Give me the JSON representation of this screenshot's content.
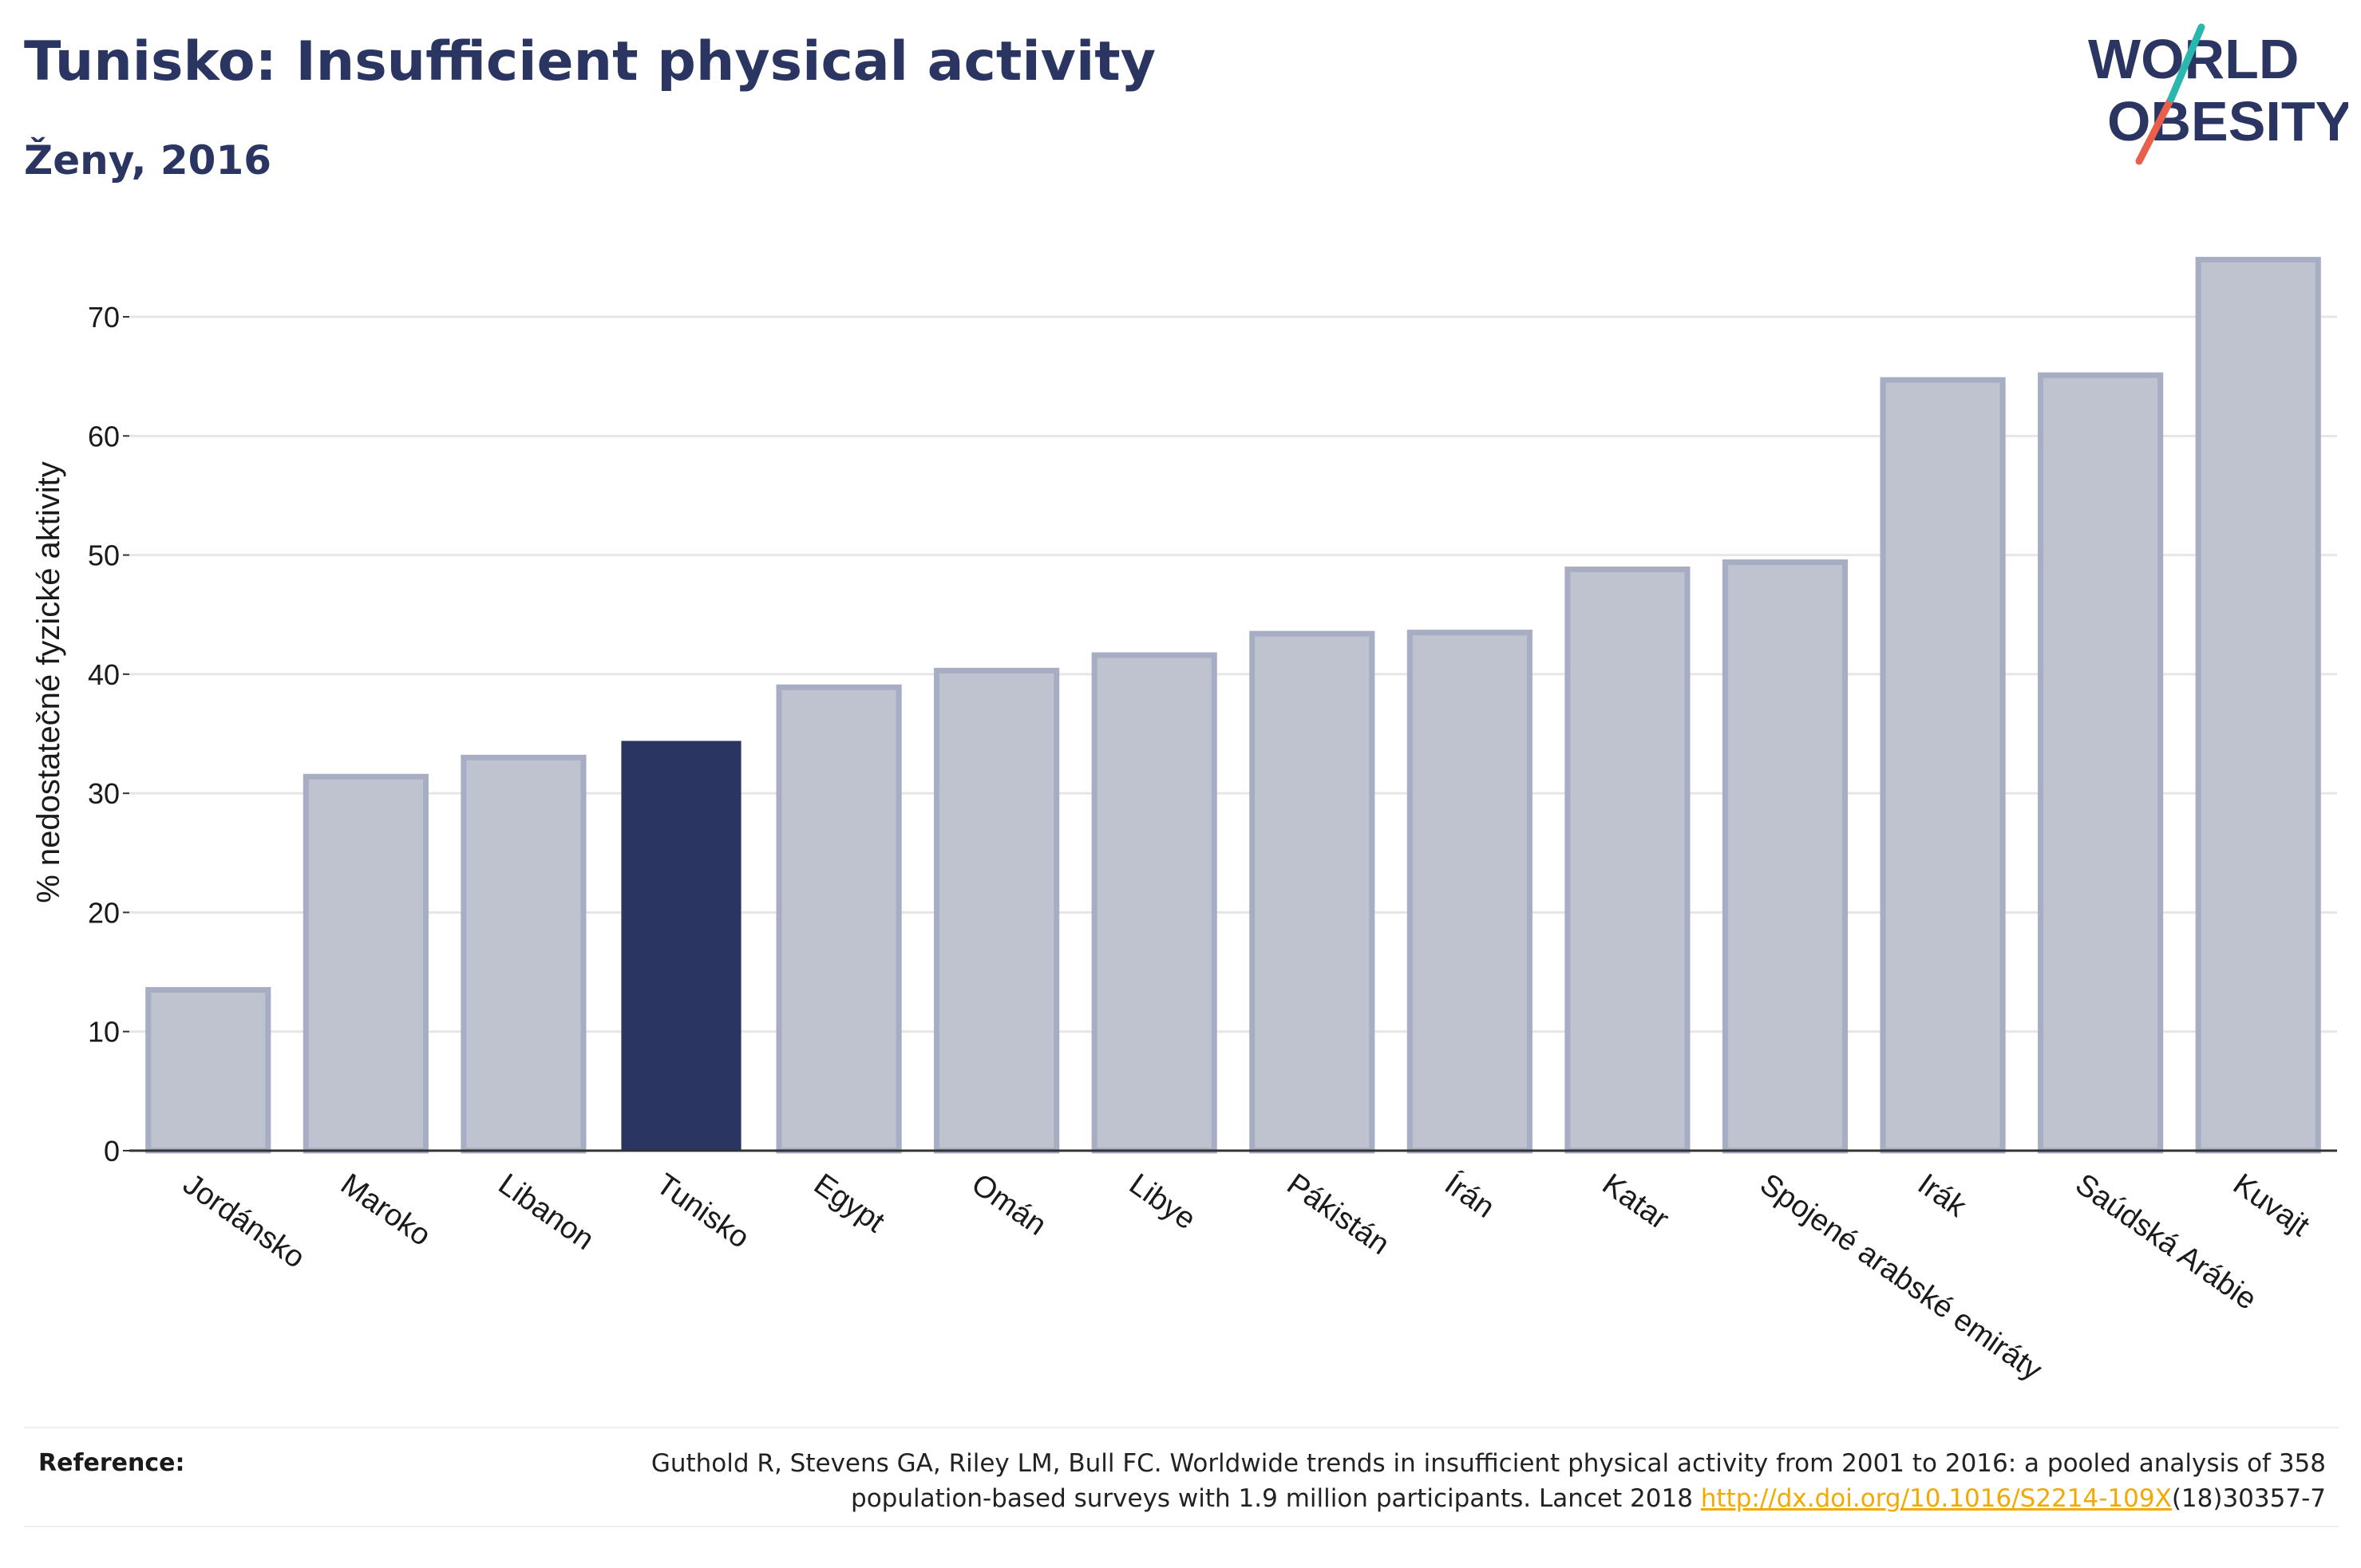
{
  "title": "Tunisko: Insufficient physical activity",
  "subtitle": "Ženy, 2016",
  "logo": {
    "line1": "WORLD",
    "line2": "OBESITY"
  },
  "colors": {
    "title": "#2b3561",
    "bar_default": "#bfc3d0",
    "bar_default_stroke": "#a7adc2",
    "bar_highlight": "#2b3561",
    "grid": "#e6e6e6",
    "axis": "#333333",
    "link": "#f2a900",
    "logo_teal": "#2ab7b0",
    "logo_coral": "#e8604c"
  },
  "chart_data": {
    "type": "bar",
    "ylabel": "% nedostatečné fyzické aktivity",
    "xlabel": "",
    "ylim": [
      0,
      76.5
    ],
    "yticks": [
      0,
      10,
      20,
      30,
      40,
      50,
      60,
      70
    ],
    "grid": true,
    "highlight": "Tunisko",
    "categories": [
      "Jordánsko",
      "Maroko",
      "Libanon",
      "Tunisko",
      "Egypt",
      "Omán",
      "Libye",
      "Pákistán",
      "Írán",
      "Katar",
      "Spojené arabské emiráty",
      "Irák",
      "Saúdská Arábie",
      "Kuvajt"
    ],
    "values": [
      13.5,
      31.4,
      33.0,
      34.4,
      38.9,
      40.3,
      41.6,
      43.4,
      43.5,
      48.8,
      49.4,
      64.7,
      65.1,
      74.8
    ]
  },
  "reference": {
    "label": "Reference:",
    "text_line1": "Guthold R, Stevens GA, Riley LM, Bull FC. Worldwide trends in insufficient physical activity from 2001 to 2016: a pooled analysis of 358",
    "text_line2_before": "population-based surveys with 1.9 million participants. Lancet 2018 ",
    "link_text": "http://dx.doi.org/10.1016/S2214-109X",
    "text_line2_after": "(18)30357-7"
  }
}
